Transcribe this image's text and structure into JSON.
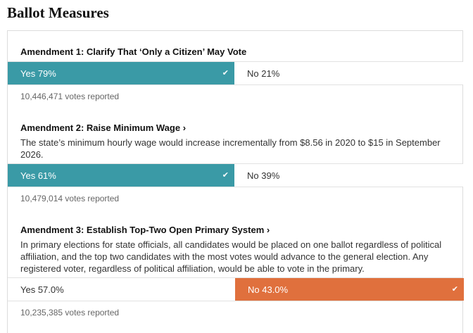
{
  "page": {
    "title": "Ballot Measures"
  },
  "measures": [
    {
      "title": "Amendment 1: Clarify That ‘Only a Citizen’ May Vote",
      "chevron": "",
      "description": "",
      "yes_label": "Yes 79%",
      "no_label": "No 21%",
      "yes_share": 0.79,
      "no_share": 0.21,
      "winner": "yes",
      "votes": "10,446,471 votes reported"
    },
    {
      "title": "Amendment 2: Raise Minimum Wage",
      "chevron": "›",
      "description": "The state’s minimum hourly wage would increase incrementally from $8.56 in 2020 to $15 in September 2026.",
      "yes_label": "Yes 61%",
      "no_label": "No 39%",
      "yes_share": 0.61,
      "no_share": 0.39,
      "winner": "yes",
      "votes": "10,479,014 votes reported"
    },
    {
      "title": "Amendment 3: Establish Top-Two Open Primary System",
      "chevron": "›",
      "description": "In primary elections for state officials, all candidates would be placed on one ballot regardless of political affiliation, and the top two candidates with the most votes would advance to the general election. Any registered voter, regardless of political affiliation, would be able to vote in the primary.",
      "yes_label": "Yes 57.0%",
      "no_label": "No 43.0%",
      "yes_share": 0.57,
      "no_share": 0.43,
      "winner": "no",
      "votes": "10,235,385 votes reported"
    }
  ],
  "icons": {
    "winner_check": "checkmark-icon"
  },
  "colors": {
    "yes_winner": "#3a9aa6",
    "no_winner": "#e0703d"
  }
}
